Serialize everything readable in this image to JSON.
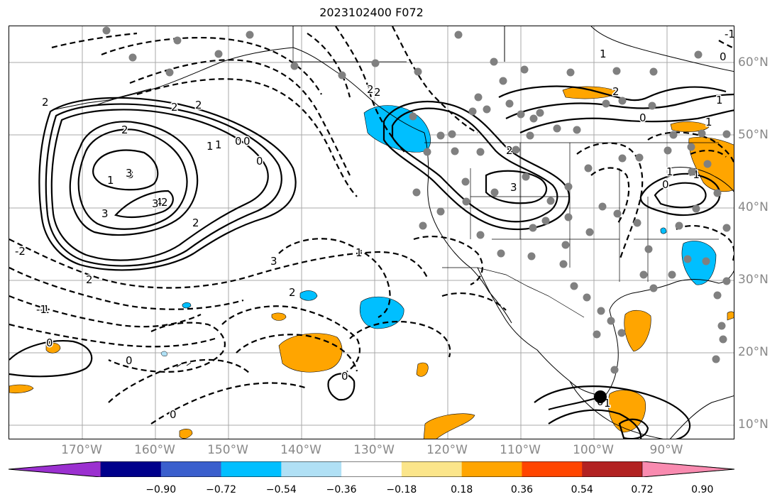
{
  "title": "2023102400 F072",
  "map": {
    "projection": "plate carree",
    "gridlines": true,
    "longitude_labels": [
      "170°W",
      "160°W",
      "150°W",
      "140°W",
      "130°W",
      "120°W",
      "110°W",
      "100°W",
      "90°W"
    ],
    "latitude_labels": [
      "60°N",
      "50°N",
      "40°N",
      "30°N",
      "20°N",
      "10°N"
    ],
    "contour_labels": [
      "3",
      "2",
      "1",
      "4",
      "2",
      "3",
      "0",
      "0",
      "2",
      "3",
      "1",
      "2",
      "3",
      "3",
      "2",
      "2",
      "1",
      "0",
      "2",
      "1",
      "2",
      "2",
      "2",
      "-1",
      "0",
      "0",
      "0",
      "3",
      "2",
      "1",
      "0",
      "1",
      "0",
      "1",
      "1",
      "0",
      "-1",
      "-1",
      "-2",
      "2",
      "0",
      "-1",
      "0",
      "1"
    ],
    "storm_marker": "black-dot"
  },
  "colorbar": {
    "ticks": [
      "−0.90",
      "−0.72",
      "−0.54",
      "−0.36",
      "−0.18",
      "0.18",
      "0.36",
      "0.54",
      "0.72",
      "0.90"
    ],
    "colors": [
      "#9b30d0",
      "#00008b",
      "#3a5fcd",
      "#00bfff",
      "#b0e0f5",
      "#ffffff",
      "#fbe58a",
      "#ffa500",
      "#ff4500",
      "#b22222",
      "#f98bb0"
    ],
    "extend": "both"
  }
}
